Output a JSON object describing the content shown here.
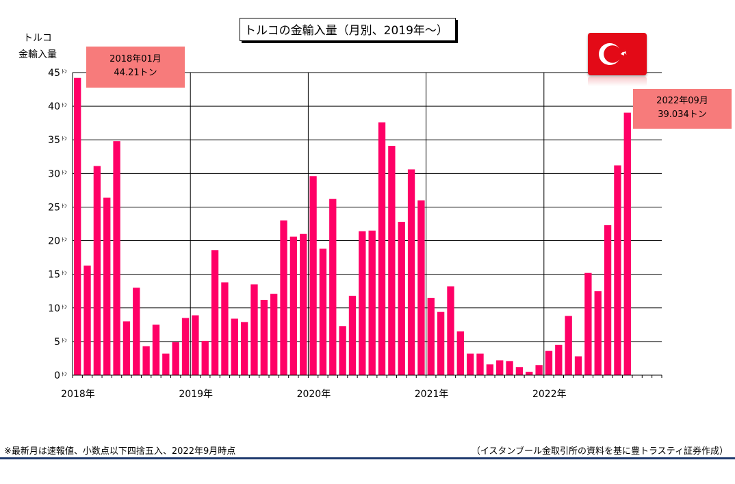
{
  "chart_data": {
    "type": "bar",
    "title": "トルコの金輸入量（月別、2019年〜）",
    "ylabel": "トルコ\n金輸入量",
    "y_unit": "ﾄﾝ",
    "ylim": [
      0,
      45
    ],
    "y_ticks": [
      "0",
      "5",
      "10",
      "15",
      "20",
      "25",
      "30",
      "35",
      "40",
      "45"
    ],
    "x_labels": [
      "2018年",
      "2019年",
      "2020年",
      "2021年",
      "2022年"
    ],
    "series": [
      {
        "color": "#ff0066",
        "values": [
          44.21,
          16.3,
          31.1,
          26.4,
          34.8,
          8.0,
          13.0,
          4.3,
          7.5,
          3.2,
          4.9,
          8.5,
          8.9,
          5.1,
          18.6,
          13.8,
          8.4,
          7.9,
          13.5,
          11.2,
          12.1,
          23.0,
          20.6,
          21.0,
          29.6,
          18.8,
          26.2,
          7.3,
          11.8,
          21.4,
          21.5,
          37.6,
          34.1,
          22.8,
          30.6,
          26.0,
          11.5,
          9.4,
          13.2,
          6.5,
          3.2,
          3.2,
          1.6,
          2.2,
          2.1,
          1.2,
          0.5,
          1.5,
          3.6,
          4.5,
          8.8,
          2.8,
          15.2,
          12.5,
          22.3,
          31.2,
          39.034
        ]
      }
    ],
    "total_months": 60,
    "grid": true,
    "annotations": [
      {
        "line1": "2018年01月",
        "line2": "44.21トン"
      },
      {
        "line1": "2022年09月",
        "line2": "39.034トン"
      }
    ]
  },
  "ylabel_lines": [
    "トルコ",
    "金輸入量"
  ],
  "flag_name": "turkey-flag-icon",
  "footnote_left": "※最新月は速報値、小数点以下四捨五入、2022年9月時点",
  "footnote_right": "（イスタンブール金取引所の資料を基に豊トラスティ証券作成）",
  "colors": {
    "bar": "#ff0066",
    "callout": "#f77b7b",
    "flag": "#e30a17",
    "rule": "#1f3a6e"
  }
}
